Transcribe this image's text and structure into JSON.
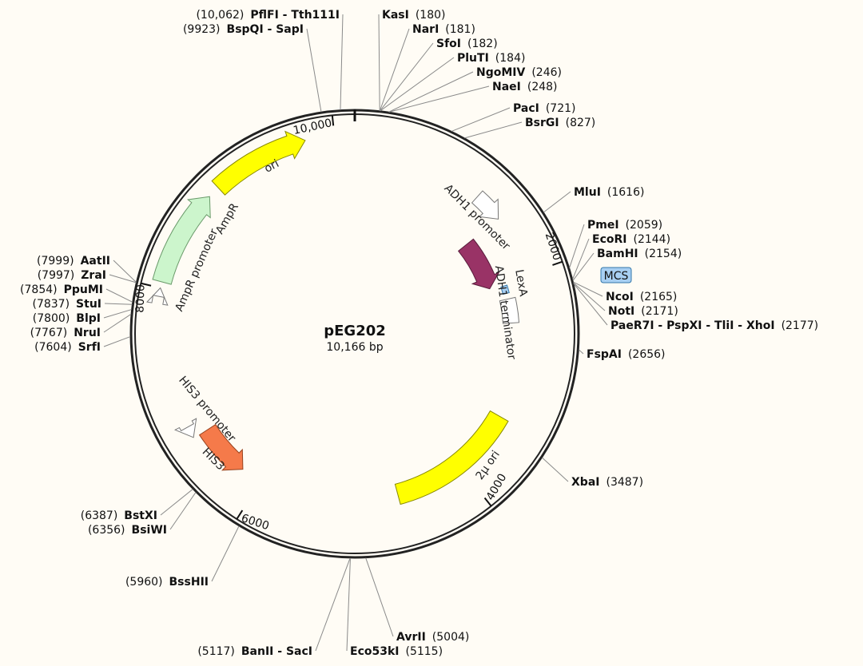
{
  "plasmid": {
    "name": "pEG202",
    "size_label": "10,166 bp",
    "length": 10166,
    "backbone_color": "#222222"
  },
  "ticks": [
    {
      "bp": 2000,
      "label": "2000"
    },
    {
      "bp": 4000,
      "label": "4000"
    },
    {
      "bp": 6000,
      "label": "6000"
    },
    {
      "bp": 8000,
      "label": "8000"
    },
    {
      "bp": 10000,
      "label": "10,000"
    }
  ],
  "features": [
    {
      "id": "ori",
      "label": "ori",
      "start": 8950,
      "end": 9760,
      "radius": 250,
      "width": 24,
      "direction": 1,
      "fill": "#ffff00",
      "stroke": "#888800",
      "label_inside": true
    },
    {
      "id": "ampr-promoter",
      "label": "AmpR promoter",
      "start": 7930,
      "end": 8000,
      "radius": 250,
      "width": 14,
      "direction": 1,
      "fill": "#ffffff",
      "stroke": "#777777",
      "label_inside": false
    },
    {
      "id": "ampr",
      "label": "AmpR",
      "start": 8050,
      "end": 8850,
      "radius": 250,
      "width": 24,
      "direction": 1,
      "fill": "#ccf5cc",
      "stroke": "#6a9a6a",
      "label_inside": false
    },
    {
      "id": "adh1-promoter",
      "label": "ADH1 promoter",
      "start": 1180,
      "end": 1450,
      "radius": 230,
      "width": 20,
      "direction": 1,
      "fill": "#ffffff",
      "stroke": "#777777",
      "label_inside": false
    },
    {
      "id": "lexa",
      "label": "LexA",
      "start": 1450,
      "end": 2020,
      "radius": 178,
      "width": 24,
      "direction": 1,
      "fill": "#993366",
      "stroke": "#5a1e3c",
      "label_inside": false
    },
    {
      "id": "mcs-box",
      "label": "",
      "start": 2040,
      "end": 2120,
      "radius": 196,
      "width": 8,
      "direction": 0,
      "fill": "#a8cff2",
      "stroke": "#3377aa",
      "label_inside": false
    },
    {
      "id": "adh1-terminator",
      "label": "ADH1 terminator",
      "start": 2180,
      "end": 2430,
      "radius": 196,
      "width": 20,
      "direction": 0,
      "fill": "#ffffff",
      "stroke": "#777777",
      "label_inside": false
    },
    {
      "id": "two-micron-ori",
      "label": "2μ ori",
      "start": 3380,
      "end": 4660,
      "radius": 208,
      "width": 26,
      "direction": 0,
      "fill": "#ffff00",
      "stroke": "#888800",
      "label_inside": true
    },
    {
      "id": "his3-promoter",
      "label": "HIS3 promoter",
      "start": 6700,
      "end": 6800,
      "radius": 240,
      "width": 18,
      "direction": -1,
      "fill": "#ffffff",
      "stroke": "#777777",
      "label_inside": false
    },
    {
      "id": "his3",
      "label": "HIS3",
      "start": 6200,
      "end": 6690,
      "radius": 220,
      "width": 24,
      "direction": -1,
      "fill": "#f57a4a",
      "stroke": "#99441f",
      "label_inside": true
    }
  ],
  "feature_labels": [
    {
      "feature": "ori",
      "text": "ori"
    },
    {
      "feature": "ampr-promoter",
      "text": "AmpR promoter"
    },
    {
      "feature": "ampr",
      "text": "AmpR"
    },
    {
      "feature": "adh1-promoter",
      "text": "ADH1 promoter"
    },
    {
      "feature": "lexa",
      "text": "LexA"
    },
    {
      "feature": "adh1-terminator",
      "text": "ADH1 terminator"
    },
    {
      "feature": "two-micron-ori",
      "text": "2μ ori"
    },
    {
      "feature": "his3-promoter",
      "text": "HIS3 promoter"
    },
    {
      "feature": "his3",
      "text": "HIS3"
    }
  ],
  "sites_right": [
    {
      "name": "KasI",
      "pos": "(180)",
      "bp": 180
    },
    {
      "name": "NarI",
      "pos": "(181)",
      "bp": 181
    },
    {
      "name": "SfoI",
      "pos": "(182)",
      "bp": 182
    },
    {
      "name": "PluTI",
      "pos": "(184)",
      "bp": 184
    },
    {
      "name": "NgoMIV",
      "pos": "(246)",
      "bp": 246
    },
    {
      "name": "NaeI",
      "pos": "(248)",
      "bp": 248
    },
    {
      "name": "PacI",
      "pos": "(721)",
      "bp": 721
    },
    {
      "name": "BsrGI",
      "pos": "(827)",
      "bp": 827
    },
    {
      "name": "MluI",
      "pos": "(1616)",
      "bp": 1616
    },
    {
      "name": "PmeI",
      "pos": "(2059)",
      "bp": 2059
    },
    {
      "name": "EcoRI",
      "pos": "(2144)",
      "bp": 2144
    },
    {
      "name": "BamHI",
      "pos": "(2154)",
      "bp": 2154
    },
    {
      "name": "NcoI",
      "pos": "(2165)",
      "bp": 2165
    },
    {
      "name": "NotI",
      "pos": "(2171)",
      "bp": 2171
    },
    {
      "name": "PaeR7I - PspXI - TliI - XhoI",
      "pos": "(2177)",
      "bp": 2177
    },
    {
      "name": "FspAI",
      "pos": "(2656)",
      "bp": 2656
    },
    {
      "name": "XbaI",
      "pos": "(3487)",
      "bp": 3487
    }
  ],
  "sites_left": [
    {
      "name": "PflFI - Tth111I",
      "pos": "(10,062)",
      "bp": 10062
    },
    {
      "name": "BspQI - SapI",
      "pos": "(9923)",
      "bp": 9923
    },
    {
      "name": "AatII",
      "pos": "(7999)",
      "bp": 7999
    },
    {
      "name": "ZraI",
      "pos": "(7997)",
      "bp": 7997
    },
    {
      "name": "PpuMI",
      "pos": "(7854)",
      "bp": 7854
    },
    {
      "name": "StuI",
      "pos": "(7837)",
      "bp": 7837
    },
    {
      "name": "BlpI",
      "pos": "(7800)",
      "bp": 7800
    },
    {
      "name": "NruI",
      "pos": "(7767)",
      "bp": 7767
    },
    {
      "name": "SrfI",
      "pos": "(7604)",
      "bp": 7604
    },
    {
      "name": "BstXI",
      "pos": "(6387)",
      "bp": 6387
    },
    {
      "name": "BsiWI",
      "pos": "(6356)",
      "bp": 6356
    },
    {
      "name": "BssHII",
      "pos": "(5960)",
      "bp": 5960
    },
    {
      "name": "BanII - SacI",
      "pos": "(5117)",
      "bp": 5117
    }
  ],
  "sites_bottom_right": [
    {
      "name": "AvrII",
      "pos": "(5004)",
      "bp": 5004
    },
    {
      "name": "Eco53kI",
      "pos": "(5115)",
      "bp": 5115
    }
  ],
  "mcs_badge": {
    "label": "MCS",
    "fill": "#a8cff2",
    "stroke": "#3377aa"
  }
}
